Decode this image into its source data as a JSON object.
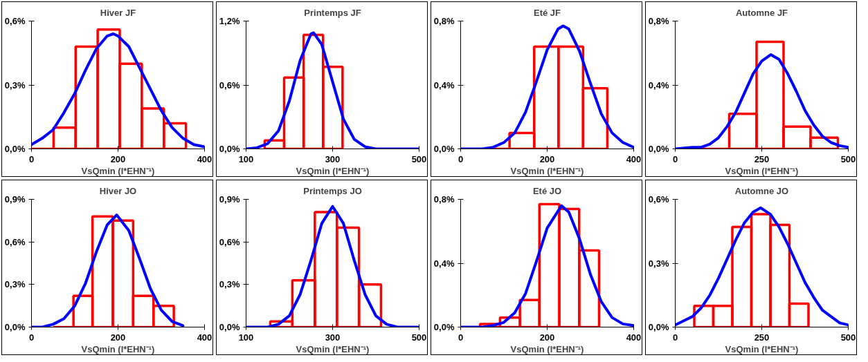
{
  "chart_data": [
    {
      "type": "histogram",
      "title": "Hiver JF",
      "xlabel": "VsQmin (l*EHN⁻¹)",
      "bins": [
        0,
        51,
        102,
        153,
        204,
        255,
        306,
        357
      ],
      "values": [
        0,
        0.1,
        0.48,
        0.56,
        0.4,
        0.19,
        0.12
      ],
      "color": "#ff0000",
      "series": [
        {
          "type": "line",
          "color": "#0000ff",
          "x": [
            0,
            25,
            50,
            75,
            100,
            125,
            150,
            175,
            189,
            200,
            225,
            250,
            275,
            300,
            325,
            350,
            375,
            400
          ],
          "values": [
            0.02,
            0.05,
            0.09,
            0.17,
            0.26,
            0.37,
            0.47,
            0.53,
            0.54,
            0.53,
            0.48,
            0.38,
            0.28,
            0.18,
            0.1,
            0.05,
            0.02,
            0.01
          ]
        }
      ],
      "xlim": [
        0,
        400
      ],
      "xticks": [
        0,
        200,
        400
      ],
      "ylim": [
        0,
        0.6
      ],
      "yticks": [
        {
          "value": 0,
          "label": "0,0%"
        },
        {
          "value": 0.3,
          "label": "0,3%"
        },
        {
          "value": 0.6,
          "label": "0,6%"
        }
      ],
      "grid": false
    },
    {
      "type": "histogram",
      "title": "Printemps JF",
      "xlabel": "VsQmin (l*EHN⁻¹)",
      "bins": [
        143,
        188,
        233,
        278,
        323
      ],
      "values": [
        0.08,
        0.67,
        1.07,
        0.77
      ],
      "color": "#ff0000",
      "series": [
        {
          "type": "line",
          "color": "#0000ff",
          "x": [
            100,
            125,
            150,
            175,
            200,
            225,
            250,
            256,
            275,
            300,
            325,
            350,
            375,
            400,
            450,
            500
          ],
          "values": [
            0,
            0.01,
            0.05,
            0.17,
            0.45,
            0.83,
            1.08,
            1.09,
            0.98,
            0.63,
            0.28,
            0.09,
            0.02,
            0,
            0,
            0
          ]
        }
      ],
      "xlim": [
        100,
        500
      ],
      "xticks": [
        100,
        300,
        500
      ],
      "ylim": [
        0,
        1.2
      ],
      "yticks": [
        {
          "value": 0,
          "label": "0,0%"
        },
        {
          "value": 0.6,
          "label": "0,6%"
        },
        {
          "value": 1.2,
          "label": "1,2%"
        }
      ],
      "grid": false
    },
    {
      "type": "histogram",
      "title": "Eté JF",
      "xlabel": "VsQmin (l*EHN⁻¹)",
      "bins": [
        57,
        113,
        170,
        226,
        283,
        339
      ],
      "values": [
        0,
        0.1,
        0.64,
        0.64,
        0.38
      ],
      "color": "#ff0000",
      "series": [
        {
          "type": "line",
          "color": "#0000ff",
          "x": [
            0,
            50,
            75,
            100,
            125,
            150,
            175,
            200,
            225,
            237,
            250,
            275,
            300,
            325,
            350,
            375,
            400
          ],
          "values": [
            0,
            0,
            0.01,
            0.04,
            0.1,
            0.23,
            0.42,
            0.62,
            0.75,
            0.77,
            0.75,
            0.61,
            0.41,
            0.22,
            0.1,
            0.04,
            0.01
          ]
        }
      ],
      "xlim": [
        0,
        400
      ],
      "xticks": [
        0,
        200,
        400
      ],
      "ylim": [
        0,
        0.8
      ],
      "yticks": [
        {
          "value": 0,
          "label": "0,0%"
        },
        {
          "value": 0.4,
          "label": "0,4%"
        },
        {
          "value": 0.8,
          "label": "0,8%"
        }
      ],
      "grid": false
    },
    {
      "type": "histogram",
      "title": "Automne JF",
      "xlabel": "VsQmin (l*EHN⁻¹)",
      "bins": [
        78,
        156,
        235,
        313,
        391,
        470
      ],
      "values": [
        0,
        0.22,
        0.67,
        0.14,
        0.07
      ],
      "color": "#ff0000",
      "series": [
        {
          "type": "line",
          "color": "#0000ff",
          "x": [
            0,
            50,
            75,
            100,
            125,
            150,
            175,
            200,
            225,
            250,
            276,
            300,
            325,
            350,
            375,
            400,
            425,
            450,
            475,
            500
          ],
          "values": [
            0,
            0.01,
            0.01,
            0.03,
            0.07,
            0.14,
            0.23,
            0.35,
            0.47,
            0.55,
            0.59,
            0.56,
            0.47,
            0.36,
            0.24,
            0.15,
            0.08,
            0.04,
            0.02,
            0.01
          ]
        }
      ],
      "xlim": [
        0,
        500
      ],
      "xticks": [
        0,
        250,
        500
      ],
      "ylim": [
        0,
        0.8
      ],
      "yticks": [
        {
          "value": 0,
          "label": "0,0%"
        },
        {
          "value": 0.4,
          "label": "0,4%"
        },
        {
          "value": 0.8,
          "label": "0,8%"
        }
      ],
      "grid": false
    },
    {
      "type": "histogram",
      "title": "Hiver JO",
      "xlabel": "VsQmin (l*EHN⁻¹)",
      "bins": [
        50,
        97,
        141,
        188,
        235,
        282,
        329
      ],
      "values": [
        0,
        0.22,
        0.78,
        0.75,
        0.22,
        0.15
      ],
      "color": "#ff0000",
      "series": [
        {
          "type": "line",
          "color": "#0000ff",
          "x": [
            0,
            25,
            50,
            75,
            100,
            125,
            150,
            175,
            197,
            225,
            250,
            275,
            300,
            325,
            350
          ],
          "values": [
            0,
            0,
            0.02,
            0.06,
            0.15,
            0.31,
            0.53,
            0.72,
            0.79,
            0.68,
            0.48,
            0.27,
            0.12,
            0.04,
            0.01
          ]
        }
      ],
      "xlim": [
        0,
        400
      ],
      "xticks": [
        0,
        200,
        400
      ],
      "ylim": [
        0,
        0.9
      ],
      "yticks": [
        {
          "value": 0,
          "label": "0,0%"
        },
        {
          "value": 0.3,
          "label": "0,3%"
        },
        {
          "value": 0.6,
          "label": "0,6%"
        },
        {
          "value": 0.9,
          "label": "0,9%"
        }
      ],
      "grid": false
    },
    {
      "type": "histogram",
      "title": "Printemps JO",
      "xlabel": "VsQmin (l*EHN⁻¹)",
      "bins": [
        156,
        207,
        259,
        310,
        361,
        412
      ],
      "values": [
        0.04,
        0.33,
        0.81,
        0.7,
        0.3
      ],
      "color": "#ff0000",
      "series": [
        {
          "type": "line",
          "color": "#0000ff",
          "x": [
            100,
            125,
            150,
            175,
            200,
            225,
            250,
            275,
            300,
            325,
            350,
            375,
            400,
            425,
            450,
            475,
            500
          ],
          "values": [
            0,
            0,
            0,
            0.02,
            0.08,
            0.23,
            0.47,
            0.73,
            0.85,
            0.73,
            0.47,
            0.23,
            0.08,
            0.02,
            0,
            0,
            0
          ]
        }
      ],
      "xlim": [
        100,
        500
      ],
      "xticks": [
        100,
        300,
        500
      ],
      "ylim": [
        0,
        0.9
      ],
      "yticks": [
        {
          "value": 0,
          "label": "0,0%"
        },
        {
          "value": 0.3,
          "label": "0,3%"
        },
        {
          "value": 0.6,
          "label": "0,6%"
        },
        {
          "value": 0.9,
          "label": "0,9%"
        }
      ],
      "grid": false
    },
    {
      "type": "histogram",
      "title": "Eté JO",
      "xlabel": "VsQmin (l*EHN⁻¹)",
      "bins": [
        45,
        91,
        137,
        182,
        228,
        274,
        320
      ],
      "values": [
        0.02,
        0.06,
        0.17,
        0.77,
        0.74,
        0.48
      ],
      "color": "#ff0000",
      "series": [
        {
          "type": "line",
          "color": "#0000ff",
          "x": [
            0,
            50,
            75,
            100,
            125,
            150,
            175,
            200,
            233,
            250,
            275,
            300,
            325,
            350,
            375,
            400
          ],
          "values": [
            0,
            0,
            0.01,
            0.03,
            0.09,
            0.21,
            0.41,
            0.62,
            0.76,
            0.72,
            0.55,
            0.33,
            0.16,
            0.06,
            0.02,
            0.01
          ]
        }
      ],
      "xlim": [
        0,
        400
      ],
      "xticks": [
        0,
        200,
        400
      ],
      "ylim": [
        0,
        0.8
      ],
      "yticks": [
        {
          "value": 0,
          "label": "0,0%"
        },
        {
          "value": 0.4,
          "label": "0,4%"
        },
        {
          "value": 0.8,
          "label": "0,8%"
        }
      ],
      "grid": false
    },
    {
      "type": "histogram",
      "title": "Automne JO",
      "xlabel": "VsQmin (l*EHN⁻¹)",
      "bins": [
        55,
        110,
        165,
        220,
        275,
        330,
        385
      ],
      "values": [
        0.1,
        0.1,
        0.47,
        0.53,
        0.48,
        0.11
      ],
      "color": "#ff0000",
      "series": [
        {
          "type": "line",
          "color": "#0000ff",
          "x": [
            0,
            25,
            50,
            75,
            100,
            125,
            150,
            175,
            200,
            225,
            247,
            275,
            300,
            325,
            350,
            375,
            400,
            425,
            450,
            475,
            500
          ],
          "values": [
            0.01,
            0.03,
            0.05,
            0.09,
            0.15,
            0.23,
            0.32,
            0.41,
            0.49,
            0.54,
            0.56,
            0.53,
            0.47,
            0.39,
            0.3,
            0.21,
            0.14,
            0.08,
            0.05,
            0.02,
            0.01
          ]
        }
      ],
      "xlim": [
        0,
        500
      ],
      "xticks": [
        0,
        250,
        500
      ],
      "ylim": [
        0,
        0.6
      ],
      "yticks": [
        {
          "value": 0,
          "label": "0,0%"
        },
        {
          "value": 0.3,
          "label": "0,3%"
        },
        {
          "value": 0.6,
          "label": "0,6%"
        }
      ],
      "grid": false
    }
  ]
}
